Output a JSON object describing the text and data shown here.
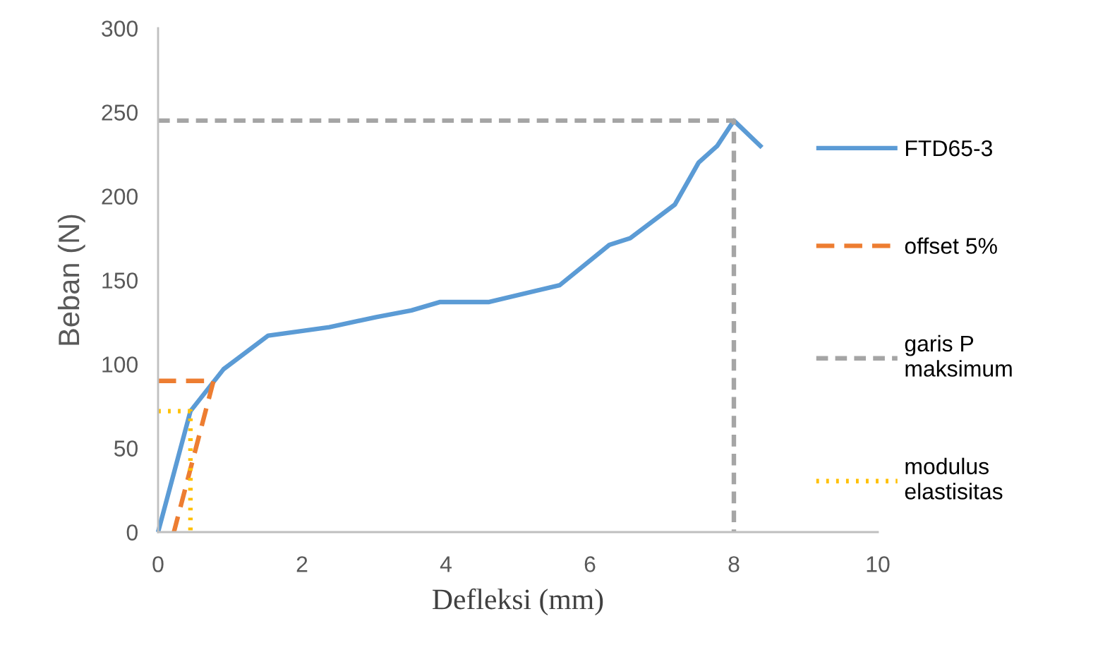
{
  "chart_data": {
    "type": "line",
    "xlabel": "Defleksi (mm)",
    "ylabel": "Beban (N)",
    "xlim": [
      0,
      10
    ],
    "xticks": [
      0,
      2,
      4,
      6,
      8,
      10
    ],
    "ylim": [
      0,
      300
    ],
    "yticks": [
      0,
      50,
      100,
      150,
      200,
      250,
      300
    ],
    "grid": false,
    "legend": "right",
    "marker": "none",
    "series": [
      {
        "name": "FTD65-3",
        "color": "#5b9bd5",
        "line_style": "solid",
        "x": [
          0,
          0.45,
          0.91,
          1.53,
          2.38,
          3.03,
          3.52,
          3.92,
          4.6,
          5.58,
          6.27,
          6.56,
          7.18,
          7.51,
          7.77,
          8.0,
          8.39
        ],
        "values": [
          0,
          72,
          97,
          117,
          122,
          128,
          132,
          137,
          137,
          147,
          171,
          175,
          195,
          220,
          230,
          245,
          229
        ]
      },
      {
        "name": "offset 5%",
        "color": "#ed7d31",
        "line_style": "dashed",
        "x": [
          0,
          0.77,
          0.22
        ],
        "values": [
          90,
          90,
          0
        ]
      },
      {
        "name": "garis P maksimum",
        "color": "#a5a5a5",
        "line_style": "dashed",
        "x": [
          0,
          8,
          8
        ],
        "values": [
          245,
          245,
          0
        ]
      },
      {
        "name": "modulus elastisitas",
        "color": "#ffc000",
        "line_style": "dotted",
        "x": [
          0,
          0.45,
          0.45
        ],
        "values": [
          72,
          72,
          0
        ]
      }
    ]
  }
}
